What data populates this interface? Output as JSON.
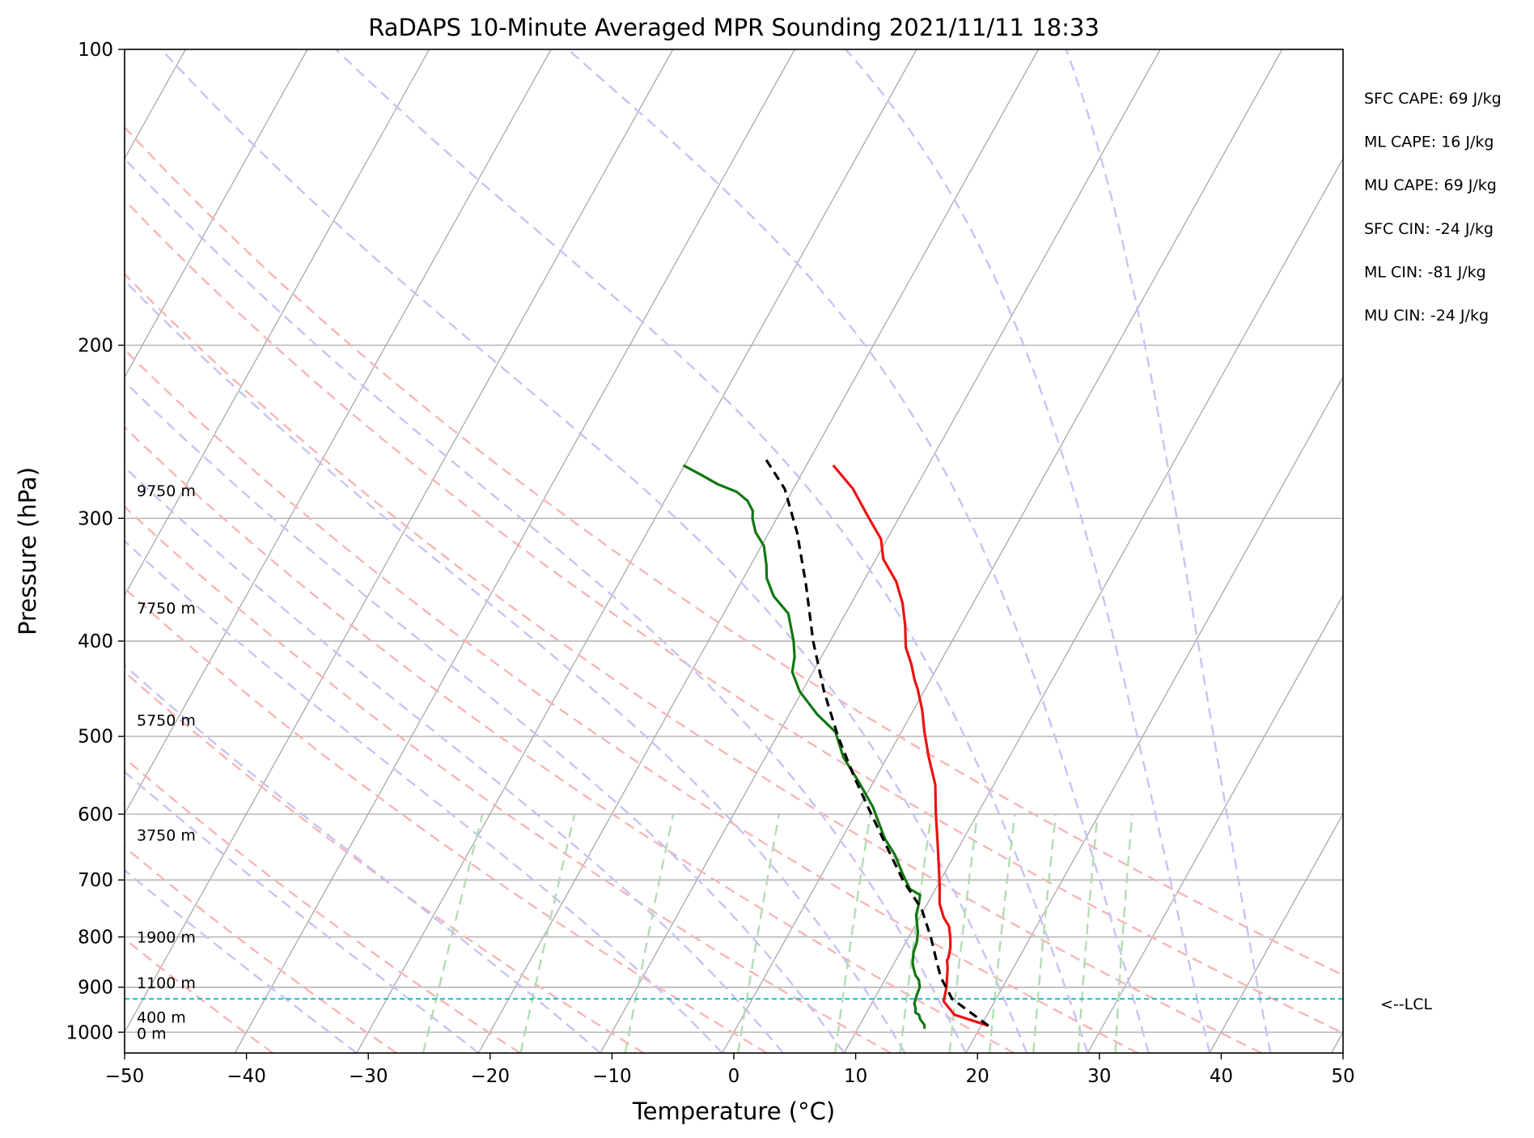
{
  "chart_data": {
    "type": "line",
    "title": "RaDAPS 10-Minute Averaged MPR Sounding 2021/11/11 18:33",
    "xlabel": "Temperature (°C)",
    "ylabel": "Pressure (hPa)",
    "xlim": [
      -50,
      50
    ],
    "ylim": [
      1050,
      100
    ],
    "y_scale": "log",
    "x_ticks": [
      -50,
      -40,
      -30,
      -20,
      -10,
      0,
      10,
      20,
      30,
      40,
      50
    ],
    "x_tick_labels": [
      "−50",
      "−40",
      "−30",
      "−20",
      "−10",
      "0",
      "10",
      "20",
      "30",
      "40",
      "50"
    ],
    "y_ticks": [
      100,
      200,
      300,
      400,
      500,
      600,
      700,
      800,
      900,
      1000
    ],
    "y_tick_labels": [
      "100",
      "200",
      "300",
      "400",
      "500",
      "600",
      "700",
      "800",
      "900",
      "1000"
    ],
    "grid": true,
    "skew_per_decade_c": 45,
    "colors": {
      "temperature": "#ee1111",
      "dewpoint": "#117711",
      "parcel": "#000000",
      "lcl": "#17c4c9",
      "dry_adiabat": "#f7b5b5",
      "moist_adiabat": "#c4c4f5",
      "mixing_ratio": "#b3dcb3",
      "isotherm": "#a9a9a9",
      "isobar": "#a9a9a9"
    },
    "background_lines": {
      "dry_adiabats_theta_k": [
        233,
        243,
        253,
        263,
        273,
        283,
        293,
        303,
        313,
        323,
        333
      ],
      "moist_adiabats_start_c": [
        -30,
        -20,
        -10,
        0,
        5,
        10,
        15,
        20,
        25,
        30,
        35,
        40,
        45
      ],
      "mixing_ratio_g_per_kg": [
        0.5,
        1,
        2,
        4,
        7,
        10,
        13,
        16,
        20,
        25,
        30
      ]
    },
    "series": [
      {
        "key": "temperature",
        "x": [
          20.6,
          17.3,
          15.8,
          15.6,
          15.4,
          15.0,
          14.6,
          14.2,
          14.2,
          13.9,
          13.4,
          12.8,
          12.0,
          11.0,
          10.2,
          9.6,
          8.0,
          6.6,
          5.2,
          3.4,
          1.9,
          0.7,
          -0.6,
          -1.3,
          -2.3,
          -3.5,
          -4.6,
          -5.8,
          -7.3,
          -9.4,
          -10.5,
          -12.7,
          -15.1,
          -17.8
        ],
        "y": [
          985,
          960,
          930,
          915,
          900,
          880,
          860,
          845,
          840,
          820,
          800,
          780,
          765,
          740,
          710,
          690,
          640,
          600,
          560,
          525,
          495,
          470,
          448,
          438,
          422,
          406,
          385,
          366,
          348,
          330,
          315,
          298,
          280,
          265
        ]
      },
      {
        "key": "dewpoint",
        "x": [
          15.5,
          15.3,
          14.7,
          14.4,
          14.0,
          13.8,
          13.5,
          13.4,
          13.3,
          13.2,
          12.8,
          12.3,
          11.8,
          11.5,
          11.3,
          11.1,
          10.9,
          10.5,
          9.6,
          9.3,
          9.0,
          7.9,
          6.6,
          5.1,
          3.5,
          1.1,
          -1.3,
          -3.6,
          -5.4,
          -7.7,
          -10.2,
          -11.7,
          -12.2,
          -13.0,
          -14.7,
          -16.7,
          -18.1,
          -18.7,
          -19.8,
          -21.1,
          -22.0,
          -22.3,
          -23.2,
          -24.5,
          -26.4,
          -28.2,
          -30.1
        ],
        "y": [
          992,
          983,
          970,
          960,
          955,
          945,
          935,
          925,
          915,
          900,
          885,
          875,
          860,
          850,
          840,
          830,
          810,
          790,
          760,
          740,
          725,
          715,
          690,
          660,
          635,
          590,
          555,
          525,
          495,
          475,
          450,
          430,
          415,
          400,
          375,
          360,
          345,
          335,
          320,
          310,
          300,
          295,
          288,
          282,
          277,
          271,
          265
        ]
      },
      {
        "key": "parcel",
        "x": [
          20.6,
          16.4,
          14.5,
          13.5,
          11.8,
          9.8,
          6.9,
          4.2,
          1.3,
          -1.8,
          -5.0,
          -8.2,
          -11.4,
          -14.6,
          -17.7,
          -20.7,
          -23.8
        ],
        "y": [
          985,
          925,
          880,
          850,
          800,
          750,
          700,
          650,
          600,
          550,
          500,
          450,
          400,
          350,
          310,
          280,
          260
        ]
      }
    ],
    "lcl": {
      "pressure": 925,
      "label": "<--LCL"
    },
    "height_labels": [
      {
        "text": "9750 m",
        "pressure": 281
      },
      {
        "text": "7750 m",
        "pressure": 370
      },
      {
        "text": "5750 m",
        "pressure": 481
      },
      {
        "text": "3750 m",
        "pressure": 630
      },
      {
        "text": "1900 m",
        "pressure": 800
      },
      {
        "text": "1100 m",
        "pressure": 890
      },
      {
        "text": "400 m",
        "pressure": 965
      },
      {
        "text": "0 m",
        "pressure": 1002
      }
    ],
    "indices": [
      "SFC CAPE: 69 J/kg",
      "ML CAPE: 16 J/kg",
      "MU CAPE: 69 J/kg",
      "SFC CIN: -24 J/kg",
      "ML CIN: -81 J/kg",
      "MU CIN: -24 J/kg"
    ]
  }
}
